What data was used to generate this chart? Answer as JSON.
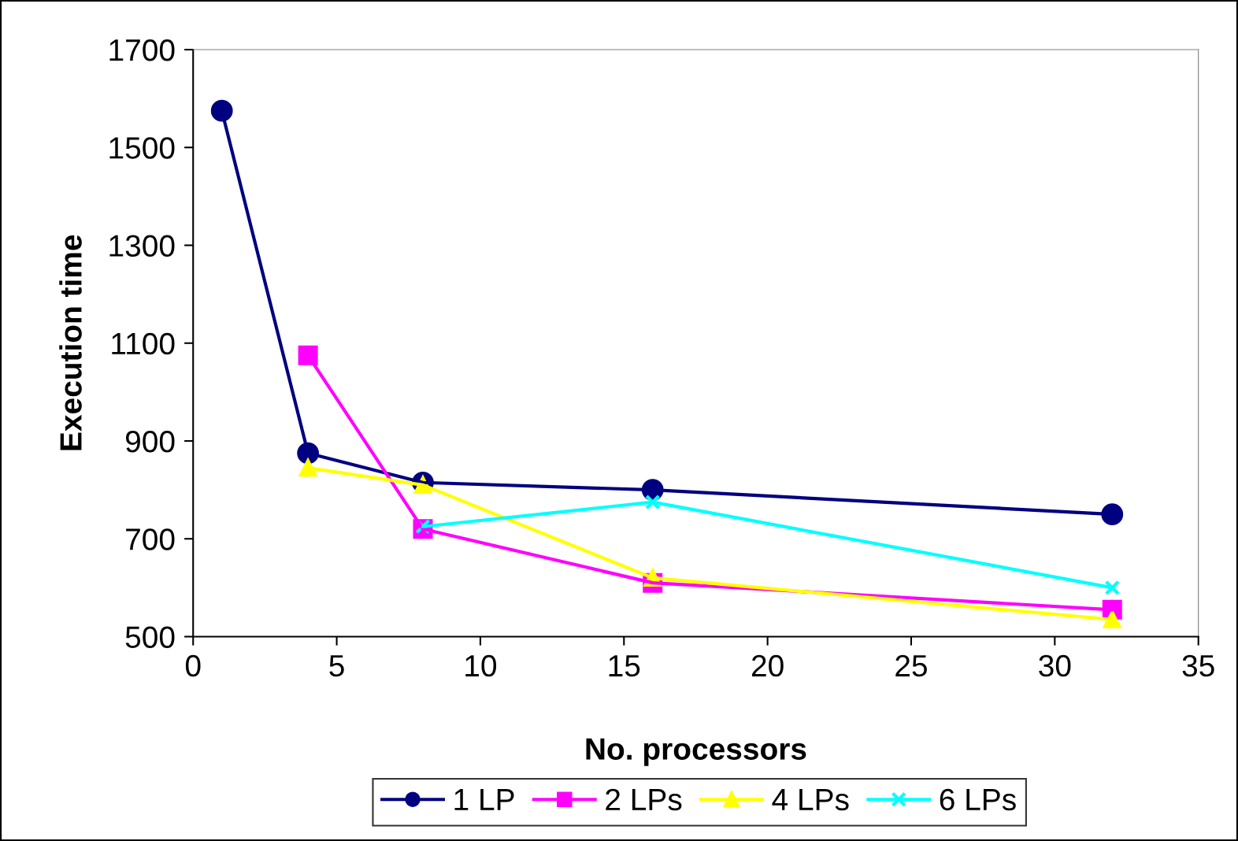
{
  "chart_data": {
    "type": "line",
    "xlabel": "No. processors",
    "ylabel": "Execution time",
    "xlim": [
      0,
      35
    ],
    "xticks": [
      0,
      5,
      10,
      15,
      20,
      25,
      30,
      35
    ],
    "ylim": [
      500,
      1700
    ],
    "yticks": [
      500,
      700,
      900,
      1100,
      1300,
      1500,
      1700
    ],
    "grid": false,
    "legend": "bottom",
    "series": [
      {
        "name": "1 LP",
        "color": "#000080",
        "marker": "circle",
        "x": [
          1,
          4,
          8,
          16,
          32
        ],
        "values": [
          1575,
          875,
          815,
          800,
          750
        ]
      },
      {
        "name": "2 LPs",
        "color": "#ff00ff",
        "marker": "square",
        "x": [
          4,
          8,
          16,
          32
        ],
        "values": [
          1075,
          720,
          610,
          555
        ]
      },
      {
        "name": "4 LPs",
        "color": "#ffff00",
        "marker": "triangle",
        "x": [
          4,
          8,
          16,
          32
        ],
        "values": [
          845,
          810,
          620,
          535
        ]
      },
      {
        "name": "6 LPs",
        "color": "#00ffff",
        "marker": "cross",
        "x": [
          8,
          16,
          32
        ],
        "values": [
          725,
          775,
          600
        ]
      }
    ]
  }
}
